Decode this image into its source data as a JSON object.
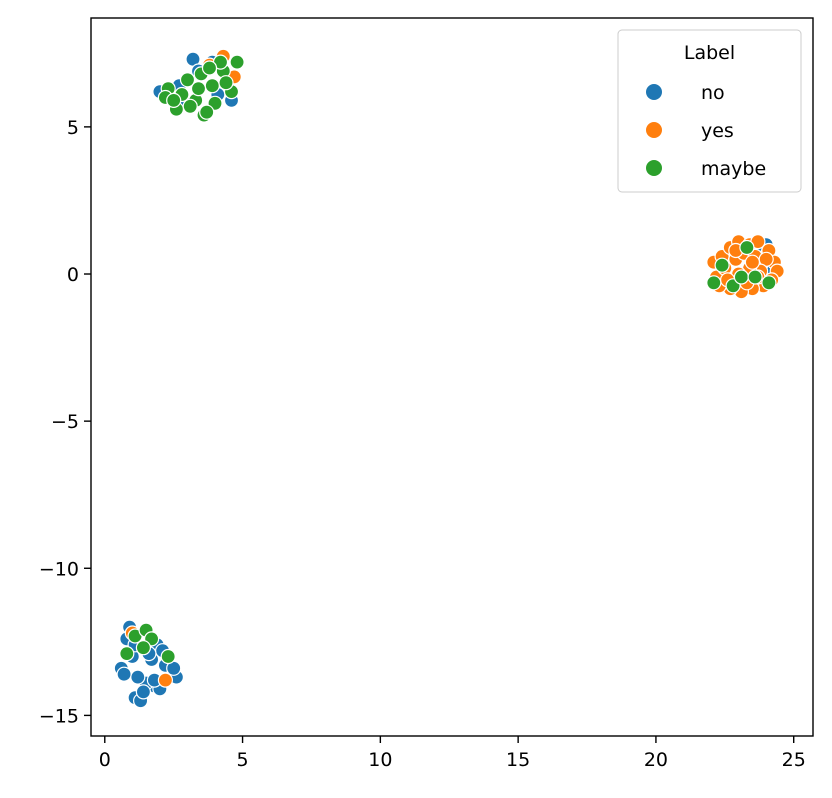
{
  "chart_data": {
    "type": "scatter",
    "title": "",
    "xlabel": "",
    "ylabel": "",
    "xlim": [
      -0.5,
      25.7
    ],
    "ylim": [
      -15.7,
      8.7
    ],
    "xticks": [
      0,
      5,
      10,
      15,
      20,
      25
    ],
    "yticks": [
      -15,
      -10,
      -5,
      0,
      5
    ],
    "xtick_labels": [
      "0",
      "5",
      "10",
      "15",
      "20",
      "25"
    ],
    "ytick_labels": [
      "−15",
      "−10",
      "−5",
      "0",
      "5"
    ],
    "grid": false,
    "legend": {
      "title": "Label",
      "placement": "top-right",
      "entries": [
        "no",
        "yes",
        "maybe"
      ]
    },
    "series": [
      {
        "name": "no",
        "color": "#1f77b4",
        "points": [
          [
            3.2,
            7.3
          ],
          [
            4.6,
            5.9
          ],
          [
            2.0,
            6.2
          ],
          [
            3.9,
            7.2
          ],
          [
            2.7,
            6.4
          ],
          [
            3.4,
            6.9
          ],
          [
            4.1,
            6.1
          ],
          [
            2.9,
            5.8
          ],
          [
            24.0,
            1.0
          ],
          [
            23.6,
            0.9
          ],
          [
            22.8,
            0.6
          ],
          [
            23.3,
            -0.2
          ],
          [
            24.2,
            0.2
          ],
          [
            23.8,
            0.3
          ],
          [
            0.9,
            -12.0
          ],
          [
            1.1,
            -14.4
          ],
          [
            1.8,
            -14.0
          ],
          [
            2.2,
            -13.3
          ],
          [
            0.6,
            -13.4
          ],
          [
            1.5,
            -13.9
          ],
          [
            1.3,
            -14.5
          ],
          [
            2.6,
            -13.7
          ],
          [
            1.0,
            -13.0
          ],
          [
            1.9,
            -12.6
          ],
          [
            1.2,
            -13.7
          ],
          [
            0.8,
            -12.4
          ],
          [
            1.7,
            -13.1
          ],
          [
            2.1,
            -12.8
          ],
          [
            1.4,
            -14.2
          ],
          [
            0.7,
            -13.6
          ],
          [
            2.5,
            -13.4
          ],
          [
            1.6,
            -12.9
          ],
          [
            2.0,
            -14.1
          ],
          [
            1.1,
            -12.6
          ],
          [
            1.8,
            -13.8
          ]
        ]
      },
      {
        "name": "yes",
        "color": "#ff7f0e",
        "points": [
          [
            4.3,
            7.4
          ],
          [
            4.7,
            6.7
          ],
          [
            3.8,
            7.1
          ],
          [
            22.1,
            0.4
          ],
          [
            22.4,
            0.6
          ],
          [
            22.7,
            0.9
          ],
          [
            23.0,
            1.1
          ],
          [
            23.4,
            1.0
          ],
          [
            23.7,
            1.1
          ],
          [
            24.1,
            0.8
          ],
          [
            24.3,
            0.4
          ],
          [
            24.4,
            0.1
          ],
          [
            24.2,
            -0.2
          ],
          [
            23.9,
            -0.4
          ],
          [
            23.5,
            -0.5
          ],
          [
            23.1,
            -0.6
          ],
          [
            22.7,
            -0.5
          ],
          [
            22.3,
            -0.4
          ],
          [
            22.2,
            -0.1
          ],
          [
            22.5,
            0.2
          ],
          [
            22.9,
            0.5
          ],
          [
            23.2,
            0.7
          ],
          [
            23.6,
            0.6
          ],
          [
            24.0,
            0.5
          ],
          [
            23.8,
            0.1
          ],
          [
            23.4,
            0.2
          ],
          [
            23.0,
            0.0
          ],
          [
            22.6,
            -0.2
          ],
          [
            23.3,
            -0.3
          ],
          [
            23.7,
            -0.1
          ],
          [
            22.9,
            0.8
          ],
          [
            23.5,
            0.4
          ],
          [
            1.0,
            -12.2
          ],
          [
            2.2,
            -13.8
          ]
        ]
      },
      {
        "name": "maybe",
        "color": "#2ca02c",
        "points": [
          [
            2.3,
            6.3
          ],
          [
            2.2,
            6.0
          ],
          [
            2.6,
            5.6
          ],
          [
            3.0,
            6.6
          ],
          [
            3.3,
            5.9
          ],
          [
            3.6,
            5.4
          ],
          [
            3.5,
            6.8
          ],
          [
            3.9,
            6.4
          ],
          [
            4.0,
            5.8
          ],
          [
            4.3,
            6.9
          ],
          [
            4.6,
            6.2
          ],
          [
            4.2,
            7.2
          ],
          [
            4.8,
            7.2
          ],
          [
            3.1,
            5.7
          ],
          [
            2.8,
            6.1
          ],
          [
            3.4,
            6.3
          ],
          [
            4.4,
            6.5
          ],
          [
            3.7,
            5.5
          ],
          [
            3.8,
            7.0
          ],
          [
            2.5,
            5.9
          ],
          [
            23.3,
            0.9
          ],
          [
            22.4,
            0.3
          ],
          [
            22.1,
            -0.3
          ],
          [
            22.8,
            -0.4
          ],
          [
            23.1,
            -0.1
          ],
          [
            23.6,
            -0.1
          ],
          [
            24.1,
            -0.3
          ],
          [
            0.8,
            -12.9
          ],
          [
            1.1,
            -12.3
          ],
          [
            1.5,
            -12.1
          ],
          [
            1.7,
            -12.4
          ],
          [
            1.4,
            -12.7
          ],
          [
            2.3,
            -13.0
          ]
        ]
      }
    ]
  }
}
